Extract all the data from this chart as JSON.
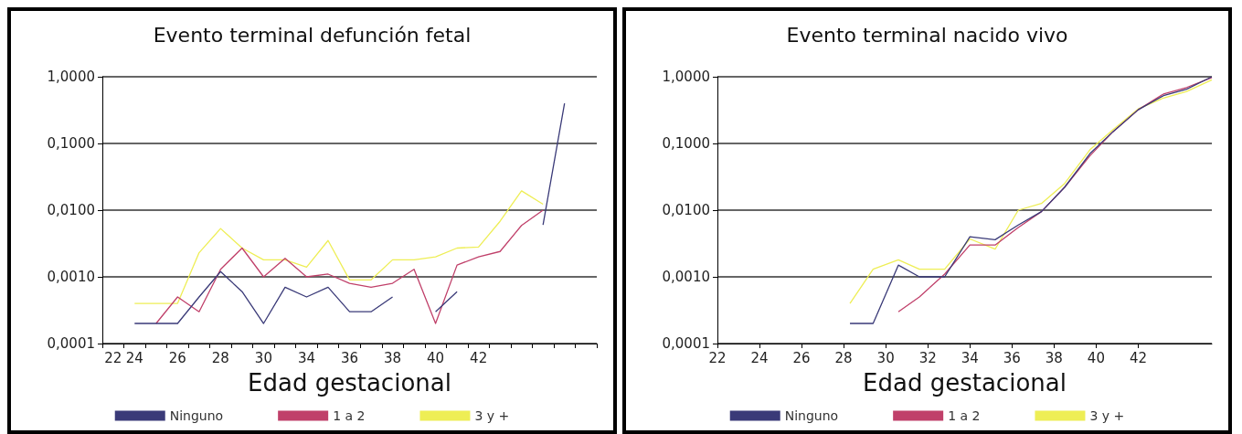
{
  "chart_data": [
    {
      "type": "line",
      "title": "Evento terminal defunción fetal",
      "xlabel": "Edad gestacional",
      "categories": [
        "22",
        "24",
        null,
        "26",
        null,
        "28",
        null,
        "30",
        null,
        "34",
        null,
        "36",
        null,
        "38",
        null,
        "40",
        null,
        "42",
        null,
        null,
        null,
        null,
        null
      ],
      "series": [
        {
          "name": "Ninguno",
          "color": "#3a3a78",
          "values": [
            null,
            0.0002,
            0.0002,
            0.0002,
            0.0005,
            0.0012,
            0.0006,
            0.0002,
            0.0007,
            0.0005,
            0.0007,
            0.0003,
            0.0003,
            0.0005,
            null,
            0.0003,
            0.0006,
            null,
            null,
            null,
            0.006,
            0.4,
            null
          ]
        },
        {
          "name": "1 a 2",
          "color": "#c0406a",
          "values": [
            null,
            null,
            0.0002,
            0.0005,
            0.0003,
            0.0013,
            0.0027,
            0.001,
            0.0019,
            0.001,
            0.0011,
            0.0008,
            0.0007,
            0.0008,
            0.0013,
            0.0002,
            0.0015,
            0.002,
            0.0024,
            0.0059,
            0.01,
            null,
            null
          ]
        },
        {
          "name": "3 y +",
          "color": "#eeee55",
          "values": [
            null,
            0.0004,
            0.0004,
            0.0004,
            0.0023,
            0.0053,
            0.0027,
            0.0018,
            0.0018,
            0.0014,
            0.0035,
            0.0009,
            0.0009,
            0.0018,
            0.0018,
            0.002,
            0.0027,
            0.0028,
            0.0068,
            0.0195,
            0.0123,
            null,
            null
          ]
        }
      ],
      "log": "y",
      "ylim": [
        0.0001,
        1
      ],
      "yticks": [
        {
          "value": 0.0001,
          "label": "0,0001"
        },
        {
          "value": 0.001,
          "label": "0,0010"
        },
        {
          "value": 0.01,
          "label": "0,0100"
        },
        {
          "value": 0.1,
          "label": "0,1000"
        },
        {
          "value": 1,
          "label": "1,0000"
        }
      ],
      "grid": "y",
      "legend": "bottom",
      "marker": "none",
      "line_style": "solid"
    },
    {
      "type": "line",
      "title": "Evento terminal nacido vivo",
      "xlabel": "Edad gestacional",
      "series": [
        {
          "name": "Ninguno",
          "color": "#3a3a78",
          "x": [
            28.3,
            29.4,
            30.6,
            31.6,
            32.8,
            34.0,
            35.2,
            36.3,
            37.4,
            38.5,
            39.7,
            40.8,
            42.0,
            43.2,
            44.3,
            45.5
          ],
          "values": [
            0.0002,
            0.0002,
            0.0015,
            0.001,
            0.001,
            0.004,
            0.0036,
            0.006,
            0.0095,
            0.022,
            0.07,
            0.15,
            0.32,
            0.52,
            0.65,
            1.0
          ]
        },
        {
          "name": "1 a 2",
          "color": "#c0406a",
          "x": [
            30.6,
            31.6,
            32.8,
            34.0,
            35.2,
            36.3,
            37.4,
            38.5,
            39.7,
            40.8,
            42.0,
            43.2,
            44.3,
            45.5
          ],
          "values": [
            0.0003,
            0.0005,
            0.0011,
            0.003,
            0.003,
            0.0055,
            0.0095,
            0.022,
            0.065,
            0.15,
            0.32,
            0.55,
            0.69,
            0.97
          ]
        },
        {
          "name": "3 y +",
          "color": "#eeee55",
          "x": [
            28.3,
            29.4,
            30.6,
            31.6,
            32.8,
            34.0,
            35.2,
            36.3,
            37.4,
            38.5,
            39.7,
            40.8,
            42.0,
            43.2,
            44.3,
            45.5
          ],
          "values": [
            0.0004,
            0.0013,
            0.0018,
            0.0013,
            0.0013,
            0.0037,
            0.0026,
            0.01,
            0.0126,
            0.025,
            0.08,
            0.16,
            0.33,
            0.48,
            0.6,
            0.9
          ]
        }
      ],
      "xlim": [
        22,
        45.5
      ],
      "xticks": [
        22,
        24,
        26,
        28,
        30,
        32,
        34,
        36,
        38,
        40,
        42
      ],
      "log": "y",
      "ylim": [
        0.0001,
        1
      ],
      "yticks": [
        {
          "value": 0.0001,
          "label": "0,0001"
        },
        {
          "value": 0.001,
          "label": "0,0010"
        },
        {
          "value": 0.01,
          "label": "0,0100"
        },
        {
          "value": 0.1,
          "label": "0,1000"
        },
        {
          "value": 1,
          "label": "1,0000"
        }
      ],
      "grid": "y",
      "legend": "bottom",
      "marker": "none",
      "line_style": "solid"
    }
  ]
}
